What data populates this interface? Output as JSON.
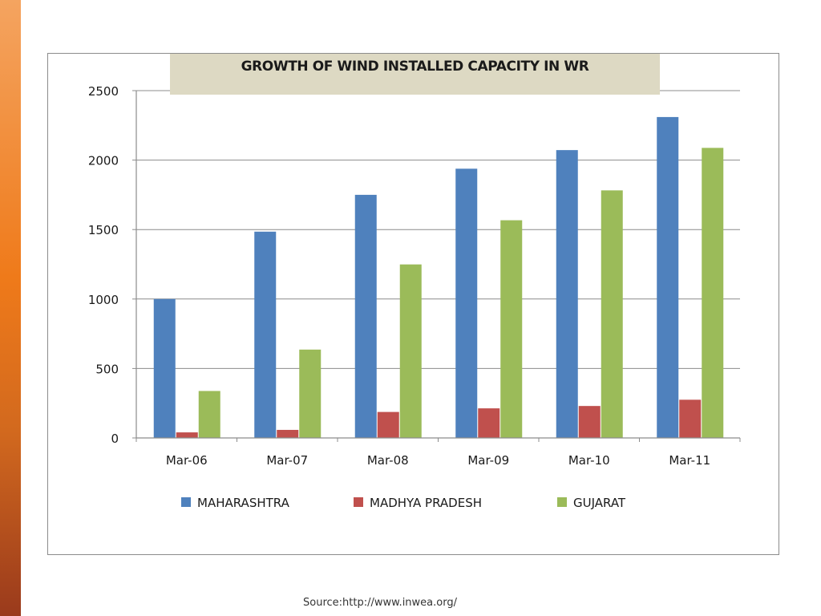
{
  "source": "Source:http://www.inwea.org/",
  "colors": {
    "maharashtra": "#4f81bd",
    "madhya_pradesh": "#c0504d",
    "gujarat": "#9bbb59",
    "title_box": "#ddd9c3",
    "side_bar": "#ef7a1a"
  },
  "chart_data": {
    "type": "bar",
    "title": "GROWTH OF WIND INSTALLED CAPACITY IN WR",
    "xlabel": "",
    "ylabel": "",
    "categories": [
      "Mar-06",
      "Mar-07",
      "Mar-08",
      "Mar-09",
      "Mar-10",
      "Mar-11"
    ],
    "series": [
      {
        "name": "MAHARASHTRA",
        "values": [
          1000,
          1485,
          1750,
          1938,
          2072,
          2310
        ],
        "color": "#4f81bd"
      },
      {
        "name": "MADHYA PRADESH",
        "values": [
          40,
          58,
          187,
          213,
          230,
          275
        ],
        "color": "#c0504d"
      },
      {
        "name": "GUJARAT",
        "values": [
          338,
          636,
          1249,
          1567,
          1782,
          2088
        ],
        "color": "#9bbb59"
      }
    ],
    "ylim": [
      0,
      2500
    ],
    "yticks": [
      0,
      500,
      1000,
      1500,
      2000,
      2500
    ],
    "grid": true,
    "legend": "bottom"
  }
}
